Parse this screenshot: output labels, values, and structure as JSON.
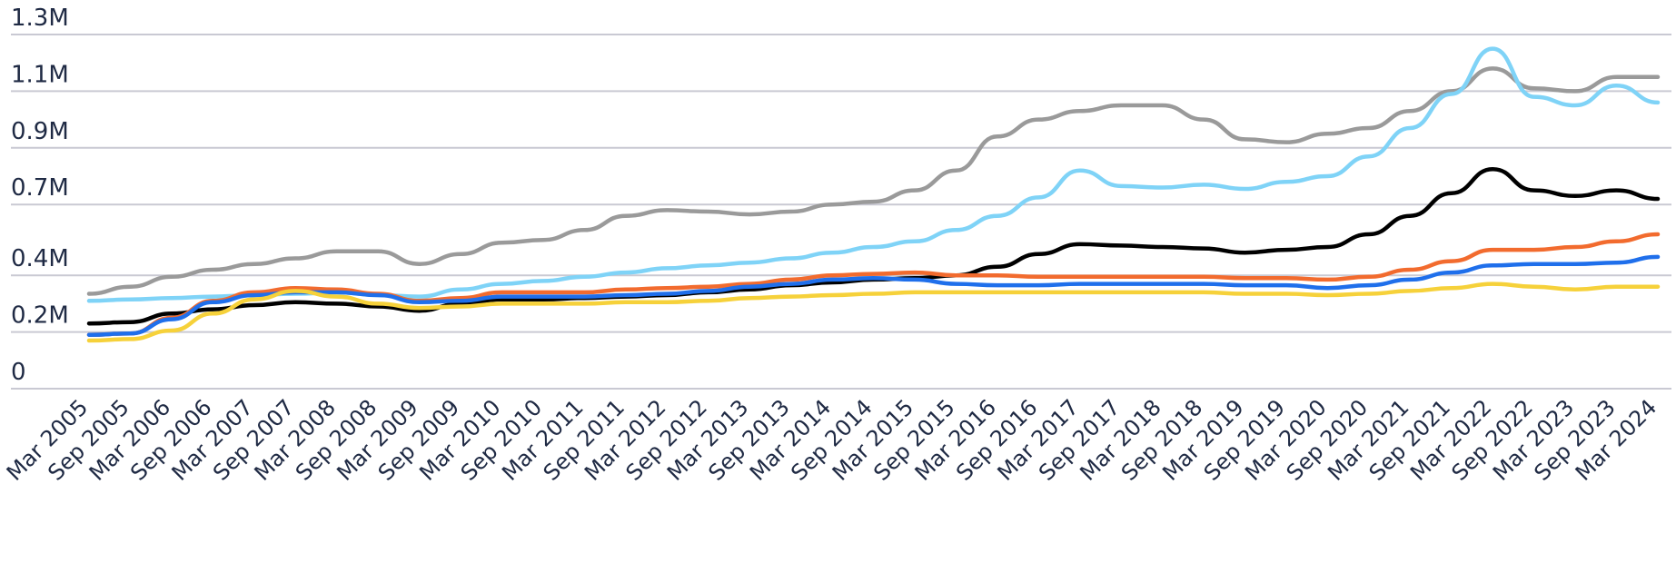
{
  "chart_data": {
    "type": "line",
    "title": "",
    "xlabel": "",
    "ylabel": "",
    "grid": true,
    "yticks": [
      {
        "value": 0,
        "label": "0"
      },
      {
        "value": 200000,
        "label": "0.2M"
      },
      {
        "value": 400000,
        "label": "0.4M"
      },
      {
        "value": 650000,
        "label": "0.7M"
      },
      {
        "value": 850000,
        "label": "0.9M"
      },
      {
        "value": 1050000,
        "label": "1.1M"
      },
      {
        "value": 1250000,
        "label": "1.3M"
      }
    ],
    "ylim": [
      0,
      1250000
    ],
    "categories": [
      "Mar 2005",
      "Sep 2005",
      "Mar 2006",
      "Sep 2006",
      "Mar 2007",
      "Sep 2007",
      "Mar 2008",
      "Sep 2008",
      "Mar 2009",
      "Sep 2009",
      "Mar 2010",
      "Sep 2010",
      "Mar 2011",
      "Sep 2011",
      "Mar 2012",
      "Sep 2012",
      "Mar 2013",
      "Sep 2013",
      "Mar 2014",
      "Sep 2014",
      "Mar 2015",
      "Sep 2015",
      "Mar 2016",
      "Sep 2016",
      "Mar 2017",
      "Sep 2017",
      "Mar 2018",
      "Sep 2018",
      "Mar 2019",
      "Sep 2019",
      "Mar 2020",
      "Sep 2020",
      "Mar 2021",
      "Sep 2021",
      "Mar 2022",
      "Sep 2022",
      "Mar 2023",
      "Sep 2023",
      "Mar 2024"
    ],
    "series": [
      {
        "color": "#9a9a9a",
        "values": [
          335000,
          360000,
          395000,
          420000,
          440000,
          460000,
          485000,
          485000,
          440000,
          475000,
          515000,
          525000,
          560000,
          610000,
          630000,
          625000,
          615000,
          625000,
          650000,
          660000,
          700000,
          770000,
          890000,
          950000,
          980000,
          1000000,
          1000000,
          950000,
          880000,
          870000,
          900000,
          920000,
          980000,
          1050000,
          1130000,
          1060000,
          1050000,
          1100000,
          1100000
        ]
      },
      {
        "color": "#7fd3f7",
        "values": [
          310000,
          315000,
          320000,
          325000,
          330000,
          335000,
          340000,
          330000,
          325000,
          350000,
          370000,
          380000,
          395000,
          410000,
          425000,
          435000,
          445000,
          460000,
          480000,
          500000,
          520000,
          560000,
          610000,
          675000,
          770000,
          715000,
          710000,
          720000,
          705000,
          730000,
          750000,
          820000,
          920000,
          1040000,
          1200000,
          1030000,
          1000000,
          1070000,
          1010000
        ]
      },
      {
        "color": "#000000",
        "values": [
          230000,
          235000,
          265000,
          280000,
          295000,
          305000,
          300000,
          290000,
          275000,
          300000,
          315000,
          315000,
          320000,
          325000,
          330000,
          340000,
          350000,
          365000,
          375000,
          385000,
          390000,
          400000,
          430000,
          475000,
          510000,
          505000,
          500000,
          495000,
          480000,
          490000,
          500000,
          545000,
          610000,
          690000,
          775000,
          700000,
          680000,
          700000,
          670000
        ]
      },
      {
        "color": "#f26b2e",
        "values": [
          190000,
          195000,
          250000,
          310000,
          340000,
          355000,
          350000,
          335000,
          310000,
          320000,
          340000,
          340000,
          340000,
          350000,
          355000,
          360000,
          370000,
          385000,
          400000,
          405000,
          410000,
          400000,
          400000,
          395000,
          395000,
          395000,
          395000,
          395000,
          390000,
          390000,
          385000,
          395000,
          420000,
          450000,
          490000,
          490000,
          500000,
          520000,
          545000
        ]
      },
      {
        "color": "#1f6feb",
        "values": [
          190000,
          195000,
          245000,
          305000,
          330000,
          340000,
          340000,
          330000,
          305000,
          310000,
          325000,
          325000,
          325000,
          330000,
          335000,
          345000,
          360000,
          370000,
          385000,
          390000,
          385000,
          370000,
          365000,
          365000,
          370000,
          370000,
          370000,
          370000,
          365000,
          365000,
          355000,
          365000,
          385000,
          410000,
          435000,
          440000,
          440000,
          445000,
          465000
        ]
      },
      {
        "color": "#f6d13a",
        "values": [
          170000,
          175000,
          205000,
          265000,
          315000,
          345000,
          325000,
          300000,
          285000,
          290000,
          300000,
          300000,
          300000,
          305000,
          305000,
          310000,
          320000,
          325000,
          330000,
          335000,
          340000,
          340000,
          340000,
          340000,
          340000,
          340000,
          340000,
          340000,
          335000,
          335000,
          330000,
          335000,
          345000,
          355000,
          370000,
          360000,
          350000,
          360000,
          360000
        ]
      }
    ]
  }
}
